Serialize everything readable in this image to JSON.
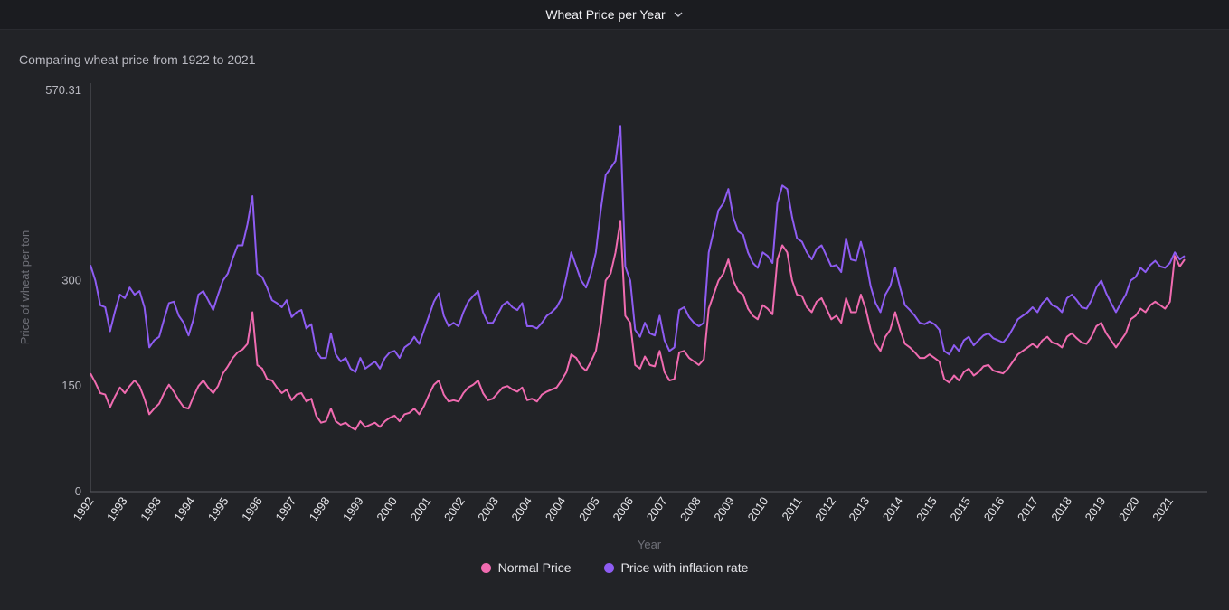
{
  "header": {
    "title": "Wheat Price per Year",
    "dropdown_icon": "chevron-down-icon"
  },
  "subtitle": "Comparing wheat price from 1922 to 2021",
  "colors": {
    "normal": "#f06bb0",
    "inflation": "#8e5cf2",
    "axis": "#5a5b62",
    "text": "#b8b8c0"
  },
  "chart_data": {
    "type": "line",
    "title": "Wheat Price per Year",
    "subtitle": "Comparing wheat price from 1922 to 2021",
    "xlabel": "Year",
    "ylabel": "Price of wheat per ton",
    "ylim": [
      0,
      570.31
    ],
    "y_ticks": [
      "570.31",
      "300",
      "150",
      "0"
    ],
    "x_tick_labels": [
      "1992",
      "1993",
      "1993",
      "1994",
      "1995",
      "1996",
      "1997",
      "1998",
      "1999",
      "2000",
      "2001",
      "2002",
      "2003",
      "2004",
      "2004",
      "2005",
      "2006",
      "2007",
      "2008",
      "2009",
      "2010",
      "2011",
      "2012",
      "2013",
      "2014",
      "2015",
      "2015",
      "2016",
      "2017",
      "2018",
      "2019",
      "2020",
      "2021"
    ],
    "legend_position": "bottom",
    "series": [
      {
        "name": "Normal Price",
        "values": [
          168,
          155,
          140,
          138,
          120,
          135,
          148,
          140,
          150,
          158,
          150,
          132,
          110,
          118,
          125,
          140,
          152,
          142,
          130,
          120,
          118,
          135,
          150,
          158,
          148,
          140,
          150,
          168,
          178,
          190,
          198,
          202,
          210,
          255,
          180,
          175,
          160,
          158,
          148,
          140,
          145,
          130,
          138,
          140,
          128,
          132,
          108,
          98,
          100,
          118,
          100,
          95,
          98,
          92,
          88,
          100,
          92,
          95,
          98,
          92,
          100,
          105,
          108,
          100,
          110,
          112,
          118,
          110,
          122,
          138,
          152,
          158,
          138,
          128,
          130,
          128,
          140,
          148,
          152,
          158,
          140,
          130,
          132,
          140,
          148,
          150,
          145,
          142,
          148,
          130,
          132,
          128,
          138,
          142,
          145,
          148,
          158,
          170,
          195,
          190,
          178,
          172,
          185,
          200,
          240,
          300,
          310,
          340,
          385,
          250,
          240,
          180,
          175,
          192,
          180,
          178,
          200,
          170,
          158,
          160,
          198,
          200,
          190,
          185,
          180,
          188,
          260,
          280,
          300,
          310,
          330,
          300,
          285,
          280,
          260,
          250,
          245,
          265,
          260,
          252,
          330,
          350,
          340,
          300,
          280,
          278,
          262,
          255,
          270,
          275,
          260,
          245,
          250,
          240,
          275,
          255,
          255,
          280,
          260,
          230,
          210,
          200,
          220,
          230,
          255,
          230,
          210,
          205,
          198,
          190,
          190,
          195,
          190,
          185,
          160,
          155,
          165,
          158,
          170,
          175,
          165,
          170,
          178,
          180,
          172,
          170,
          168,
          175,
          185,
          195,
          200,
          205,
          210,
          205,
          215,
          220,
          212,
          210,
          205,
          220,
          225,
          218,
          212,
          210,
          220,
          235,
          240,
          225,
          215,
          205,
          215,
          225,
          245,
          250,
          260,
          255,
          265,
          270,
          265,
          260,
          270,
          335,
          320,
          330
        ]
      },
      {
        "name": "Price with inflation rate",
        "values": [
          322,
          300,
          265,
          262,
          228,
          256,
          280,
          275,
          290,
          280,
          285,
          262,
          205,
          215,
          220,
          245,
          268,
          270,
          250,
          240,
          222,
          245,
          280,
          285,
          272,
          258,
          280,
          300,
          310,
          332,
          350,
          350,
          380,
          420,
          310,
          305,
          290,
          272,
          268,
          262,
          272,
          248,
          255,
          258,
          232,
          238,
          200,
          190,
          190,
          225,
          195,
          185,
          190,
          175,
          170,
          190,
          175,
          180,
          185,
          175,
          190,
          198,
          200,
          190,
          205,
          210,
          220,
          210,
          230,
          250,
          270,
          282,
          250,
          235,
          240,
          235,
          255,
          270,
          278,
          285,
          255,
          240,
          240,
          252,
          265,
          270,
          262,
          258,
          268,
          235,
          235,
          232,
          240,
          250,
          255,
          262,
          275,
          305,
          340,
          320,
          300,
          290,
          310,
          340,
          400,
          450,
          460,
          470,
          520,
          320,
          300,
          230,
          220,
          240,
          225,
          222,
          250,
          215,
          200,
          205,
          258,
          262,
          248,
          240,
          235,
          240,
          340,
          370,
          400,
          410,
          430,
          390,
          370,
          365,
          340,
          325,
          318,
          340,
          335,
          325,
          410,
          435,
          430,
          390,
          360,
          355,
          340,
          330,
          345,
          350,
          335,
          320,
          322,
          312,
          360,
          330,
          328,
          355,
          330,
          292,
          268,
          255,
          280,
          292,
          318,
          290,
          265,
          258,
          250,
          240,
          238,
          242,
          238,
          230,
          200,
          195,
          208,
          200,
          215,
          220,
          208,
          215,
          222,
          225,
          218,
          215,
          212,
          220,
          232,
          245,
          250,
          255,
          262,
          255,
          268,
          275,
          265,
          262,
          255,
          275,
          280,
          272,
          262,
          260,
          272,
          290,
          300,
          282,
          268,
          255,
          268,
          280,
          300,
          305,
          318,
          312,
          322,
          328,
          320,
          318,
          325,
          340,
          330,
          335
        ]
      }
    ]
  },
  "legend": [
    {
      "label": "Normal Price"
    },
    {
      "label": "Price with inflation rate"
    }
  ]
}
